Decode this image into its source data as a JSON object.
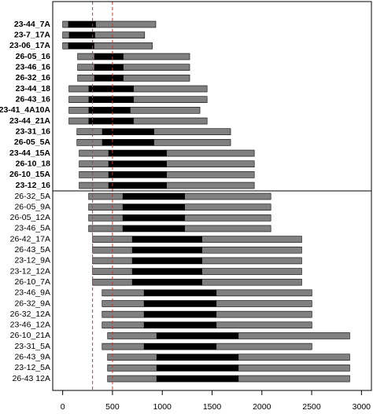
{
  "chart_data": {
    "type": "range-bar",
    "xlim": [
      -100,
      3100
    ],
    "xticks": [
      0,
      500,
      1000,
      1500,
      2000,
      2500,
      3000
    ],
    "outer_color": "#808080",
    "inner_color": "#000000",
    "reference_lines": [
      300,
      500
    ],
    "reference_color": "#c0392b",
    "groups": [
      {
        "bold": true,
        "categories": [
          "23-44_7A",
          "23-7_17A",
          "23-06_17A",
          "26-05_16",
          "23-46_16",
          "26-32_16",
          "23-44_18",
          "26-43_16",
          "23-41_4A10A",
          "23-44_21A",
          "23-31_16",
          "26-05_5A",
          "23-44_15A",
          "26-10_18",
          "26-10_15A",
          "23-12_16"
        ],
        "outer": [
          [
            0,
            935
          ],
          [
            0,
            823
          ],
          [
            0,
            900
          ],
          [
            150,
            1275
          ],
          [
            150,
            1275
          ],
          [
            150,
            1275
          ],
          [
            63,
            1450
          ],
          [
            63,
            1450
          ],
          [
            63,
            1378
          ],
          [
            63,
            1450
          ],
          [
            143,
            1686
          ],
          [
            143,
            1686
          ],
          [
            166,
            1924
          ],
          [
            166,
            1924
          ],
          [
            166,
            1924
          ],
          [
            166,
            1924
          ]
        ],
        "inner": [
          [
            55,
            333
          ],
          [
            63,
            325
          ],
          [
            55,
            317
          ],
          [
            317,
            610
          ],
          [
            317,
            610
          ],
          [
            317,
            610
          ],
          [
            260,
            713
          ],
          [
            260,
            713
          ],
          [
            260,
            680
          ],
          [
            260,
            713
          ],
          [
            396,
            918
          ],
          [
            396,
            918
          ],
          [
            459,
            1045
          ],
          [
            459,
            1045
          ],
          [
            459,
            1045
          ],
          [
            459,
            1045
          ]
        ]
      },
      {
        "bold": false,
        "categories": [
          "26-32_5A",
          "26-05_9A",
          "26-05_12A",
          "23-46_5A",
          "26-42_17A",
          "26-43_5A",
          "23-12_9A",
          "23-12_12A",
          "26-10_7A",
          "23-46_9A",
          "26-32_9A",
          "26-32_12A",
          "23-46_12A",
          "26-10_21A",
          "23-31_5A",
          "26-43_9A",
          "23-12_5A",
          "26-43 12A"
        ],
        "outer": [
          [
            261,
            2090
          ],
          [
            261,
            2090
          ],
          [
            261,
            2090
          ],
          [
            261,
            2090
          ],
          [
            300,
            2400
          ],
          [
            300,
            2400
          ],
          [
            300,
            2400
          ],
          [
            300,
            2400
          ],
          [
            300,
            2400
          ],
          [
            396,
            2502
          ],
          [
            396,
            2502
          ],
          [
            396,
            2502
          ],
          [
            396,
            2502
          ],
          [
            451,
            2882
          ],
          [
            396,
            2502
          ],
          [
            451,
            2882
          ],
          [
            451,
            2882
          ],
          [
            451,
            2882
          ]
        ],
        "inner": [
          [
            602,
            1227
          ],
          [
            602,
            1227
          ],
          [
            602,
            1227
          ],
          [
            602,
            1227
          ],
          [
            697,
            1401
          ],
          [
            697,
            1401
          ],
          [
            697,
            1401
          ],
          [
            697,
            1401
          ],
          [
            697,
            1401
          ],
          [
            815,
            1544
          ],
          [
            815,
            1544
          ],
          [
            815,
            1544
          ],
          [
            815,
            1544
          ],
          [
            942,
            1766
          ],
          [
            815,
            1544
          ],
          [
            942,
            1766
          ],
          [
            942,
            1766
          ],
          [
            942,
            1766
          ]
        ]
      }
    ]
  }
}
